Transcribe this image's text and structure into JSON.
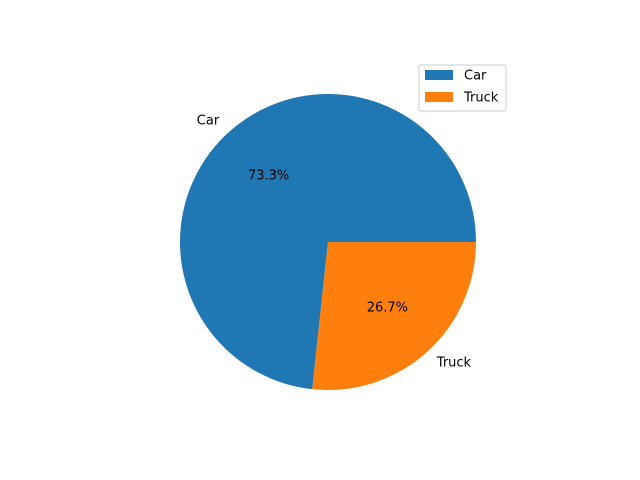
{
  "chart_data": {
    "type": "pie",
    "categories": [
      "Car",
      "Truck"
    ],
    "values": [
      73.3,
      26.7
    ],
    "value_labels": [
      "73.3%",
      "26.7%"
    ],
    "colors": [
      "#1f77b4",
      "#ff7f0e"
    ],
    "title": "",
    "legend": {
      "position": "top-right",
      "entries": [
        "Car",
        "Truck"
      ]
    }
  }
}
